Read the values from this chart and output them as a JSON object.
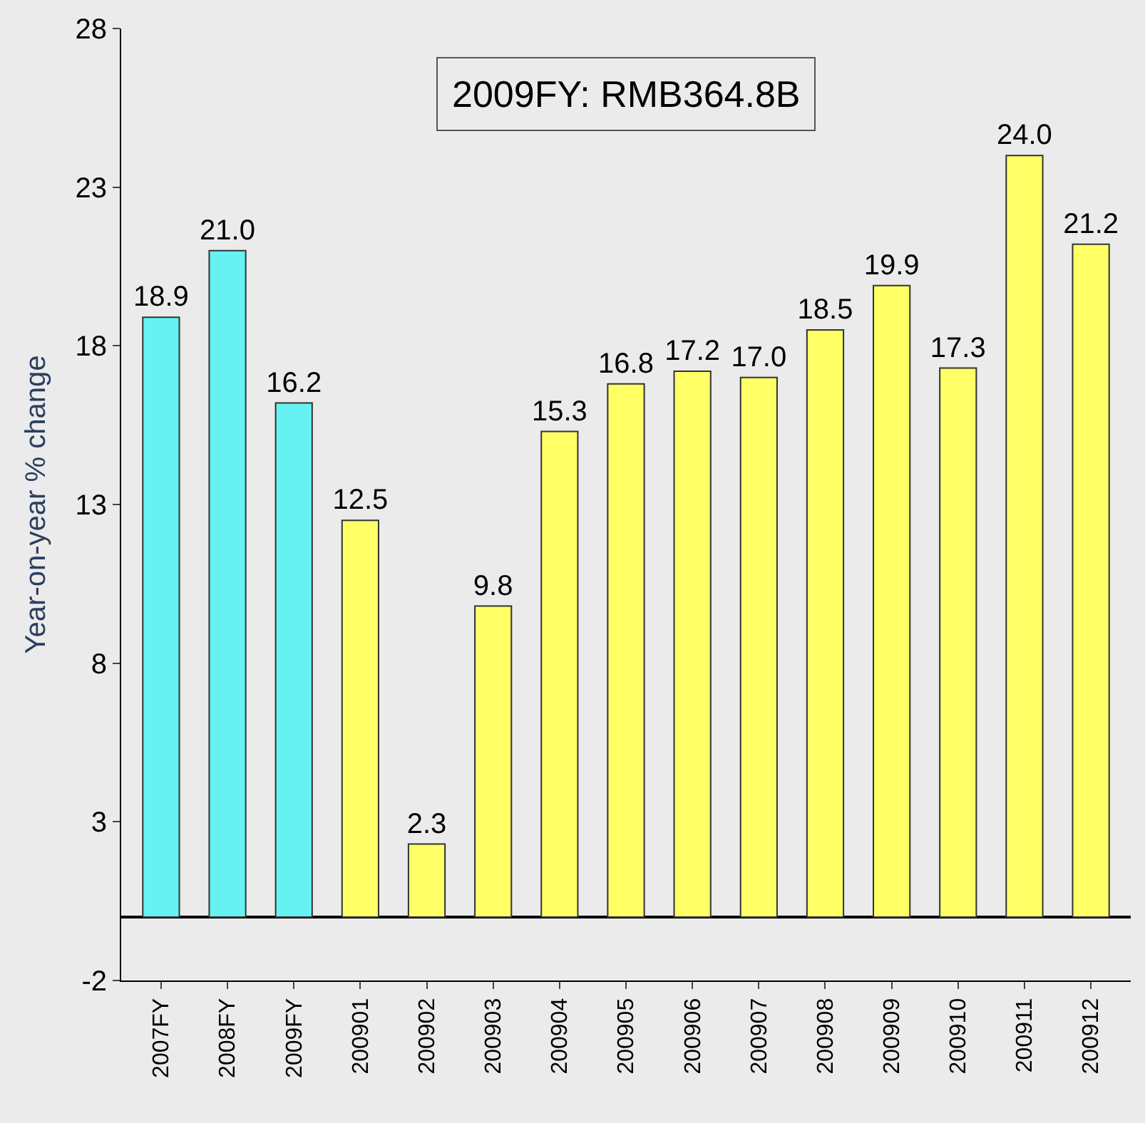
{
  "chart_data": {
    "type": "bar",
    "ylabel": "Year-on-year % change",
    "categories": [
      "2007FY",
      "2008FY",
      "2009FY",
      "200901",
      "200902",
      "200903",
      "200904",
      "200905",
      "200906",
      "200907",
      "200908",
      "200909",
      "200910",
      "200911",
      "200912"
    ],
    "values": [
      18.9,
      21.0,
      16.2,
      12.5,
      2.3,
      9.8,
      15.3,
      16.8,
      17.2,
      17.0,
      18.5,
      19.9,
      17.3,
      24.0,
      21.2
    ],
    "colors": [
      "#66f2f2",
      "#66f2f2",
      "#66f2f2",
      "#ffff66",
      "#ffff66",
      "#ffff66",
      "#ffff66",
      "#ffff66",
      "#ffff66",
      "#ffff66",
      "#ffff66",
      "#ffff66",
      "#ffff66",
      "#ffff66",
      "#ffff66"
    ],
    "value_labels": [
      "18.9",
      "21.0",
      "16.2",
      "12.5",
      "2.3",
      "9.8",
      "15.3",
      "16.8",
      "17.2",
      "17.0",
      "18.5",
      "19.9",
      "17.3",
      "24.0",
      "21.2"
    ],
    "ylim": [
      -2,
      28
    ],
    "yticks": [
      -2,
      3,
      8,
      13,
      18,
      23,
      28
    ],
    "grid": false,
    "legend": false,
    "annotations": [
      "2009FY: RMB364.8B"
    ]
  }
}
